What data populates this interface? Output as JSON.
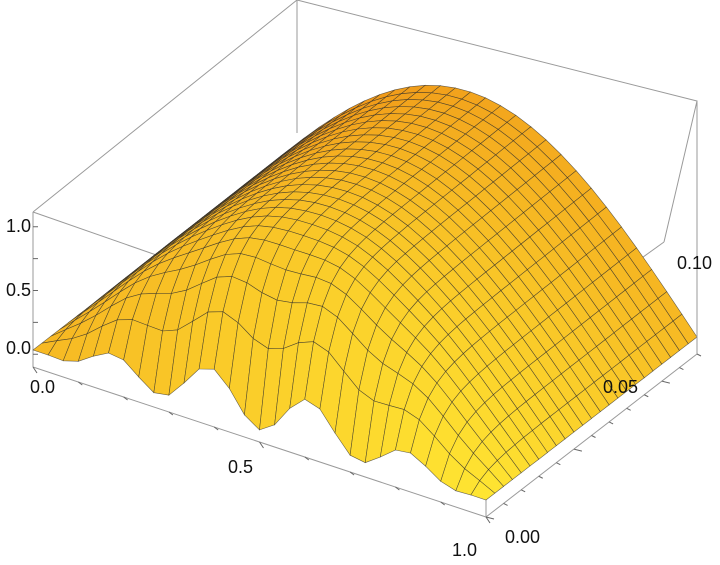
{
  "chart_data": {
    "type": "surface3d",
    "title": "",
    "xlabel": "",
    "ylabel": "",
    "zlabel": "",
    "x_ticks": [
      "0.0",
      "0.5",
      "1.0"
    ],
    "y_ticks": [
      "0.00",
      "0.05",
      "0.10"
    ],
    "z_ticks": [
      "0.0",
      "0.5",
      "1.0"
    ],
    "xlim": [
      0,
      1
    ],
    "ylim": [
      0,
      0.12
    ],
    "zlim": [
      -0.1,
      1.1
    ],
    "description_of_surface": "u(x,t) = sin(pi x) in t, oscillatory dip near t=0 between x=0.1 and x=0.9",
    "surface_color": "#f5a623",
    "grid_lines": "mesh"
  }
}
